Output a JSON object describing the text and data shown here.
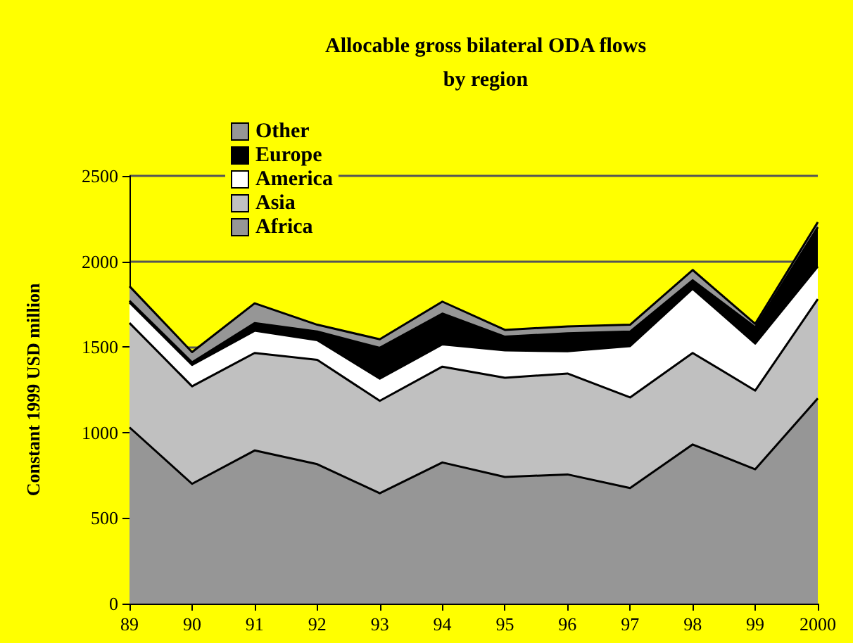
{
  "chart_data": {
    "type": "area",
    "stacked": true,
    "title": "Allocable gross bilateral ODA flows\nby region",
    "ylabel": "Constant 1999 USD million",
    "categories": [
      "89",
      "90",
      "91",
      "92",
      "93",
      "94",
      "95",
      "96",
      "97",
      "98",
      "99",
      "2000"
    ],
    "series": [
      {
        "name": "Africa",
        "color": "#969696",
        "values": [
          1030,
          700,
          895,
          815,
          645,
          825,
          740,
          755,
          675,
          930,
          785,
          1200
        ]
      },
      {
        "name": "Asia",
        "color": "#c0c0c0",
        "values": [
          610,
          570,
          570,
          610,
          540,
          560,
          580,
          590,
          530,
          535,
          460,
          580
        ]
      },
      {
        "name": "America",
        "color": "#ffffff",
        "values": [
          120,
          125,
          130,
          115,
          130,
          130,
          160,
          130,
          300,
          375,
          275,
          190
        ]
      },
      {
        "name": "Europe",
        "color": "#000000",
        "values": [
          10,
          15,
          45,
          50,
          180,
          180,
          80,
          105,
          85,
          50,
          95,
          230
        ]
      },
      {
        "name": "Other",
        "color": "#969696",
        "values": [
          85,
          60,
          115,
          40,
          50,
          70,
          40,
          40,
          40,
          60,
          20,
          30
        ]
      }
    ],
    "ylim": [
      0,
      2500
    ],
    "yticks": [
      0,
      500,
      1000,
      1500,
      2000,
      2500
    ],
    "grid": "y",
    "legend": "top left"
  }
}
